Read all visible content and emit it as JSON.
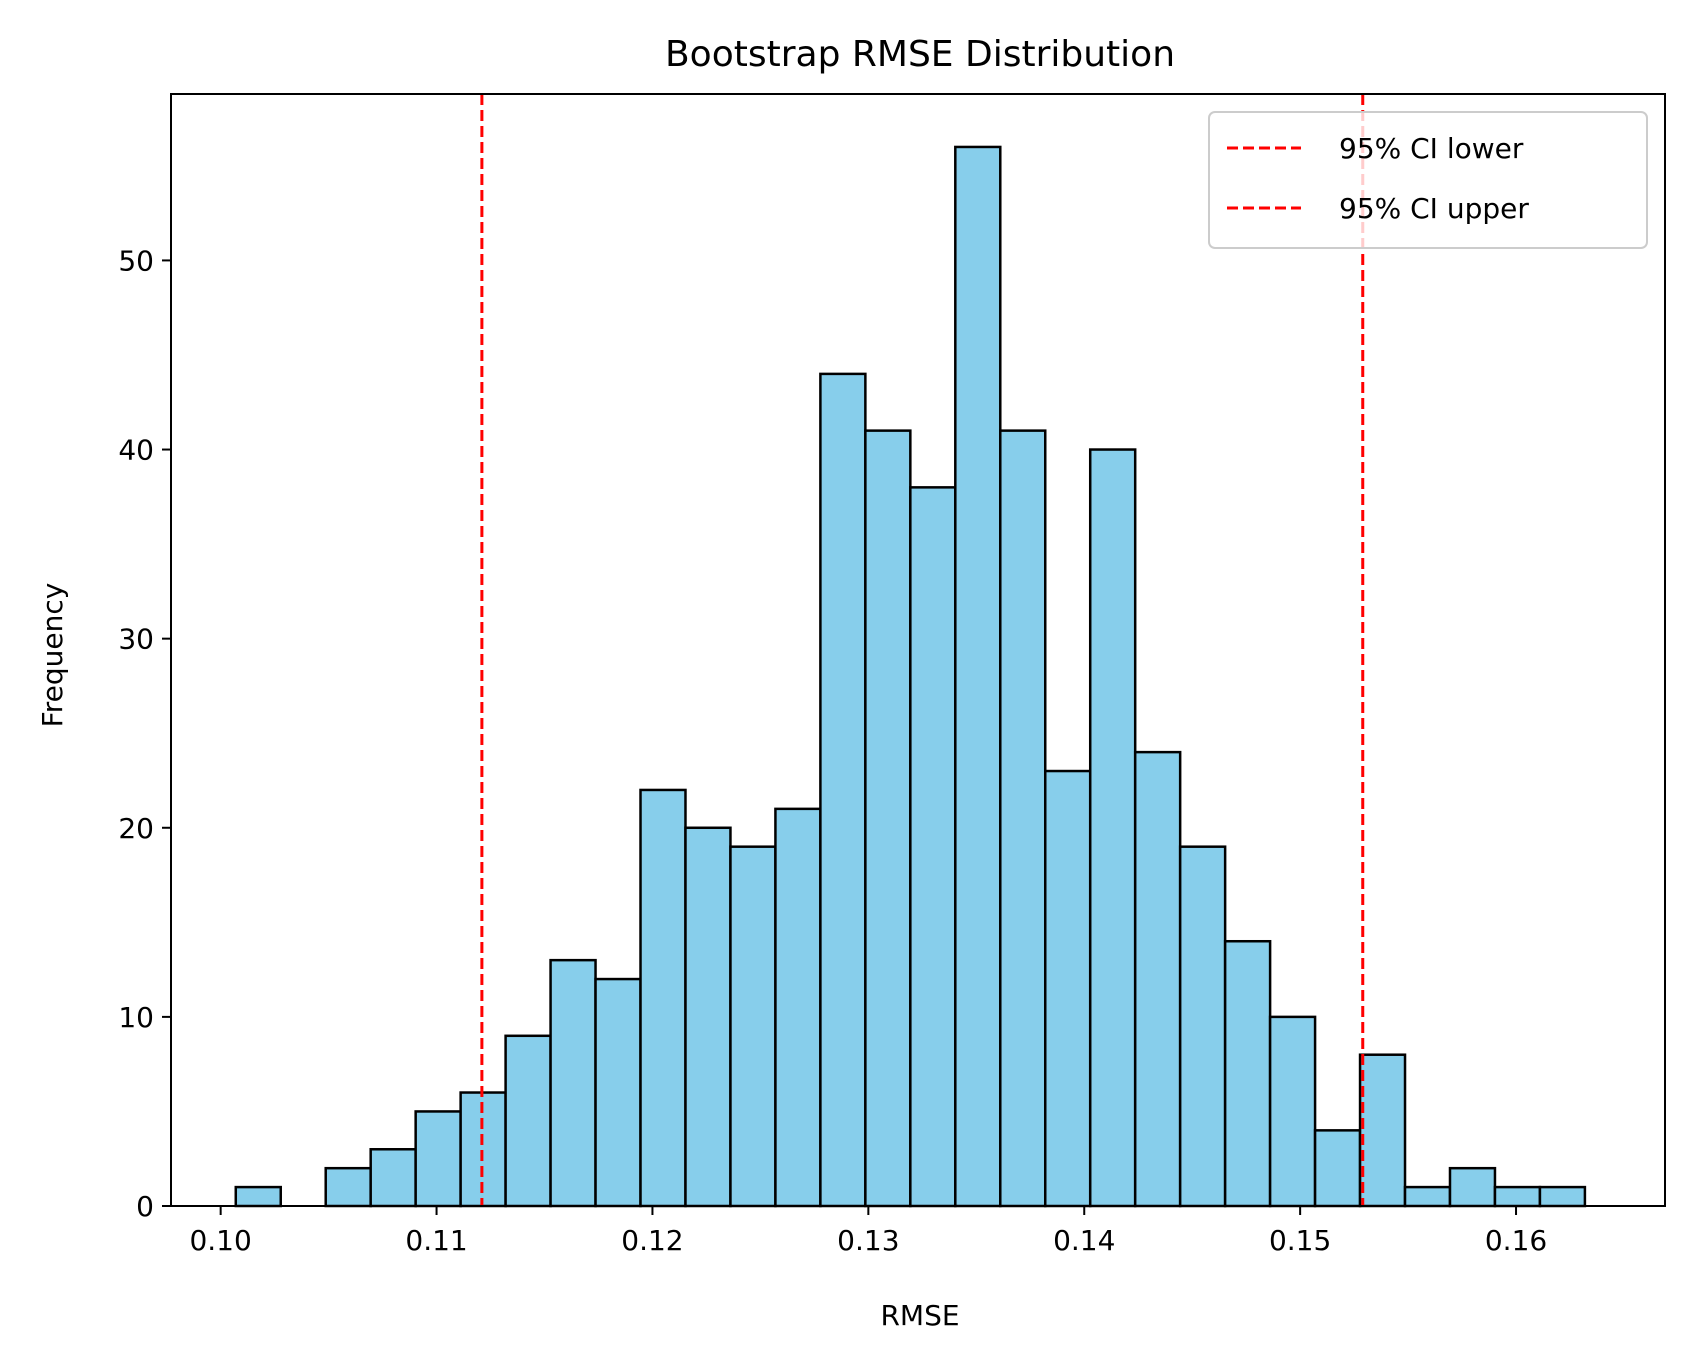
{
  "chart_data": {
    "type": "histogram",
    "title": "Bootstrap RMSE Distribution",
    "xlabel": "RMSE",
    "ylabel": "Frequency",
    "xlim": [
      0.0977,
      0.1669
    ],
    "ylim": [
      0,
      58.8
    ],
    "xticks": [
      0.1,
      0.11,
      0.12,
      0.13,
      0.14,
      0.15,
      0.16
    ],
    "xtick_labels": [
      "0.10",
      "0.11",
      "0.12",
      "0.13",
      "0.14",
      "0.15",
      "0.16"
    ],
    "yticks": [
      0,
      10,
      20,
      30,
      40,
      50
    ],
    "ytick_labels": [
      "0",
      "10",
      "20",
      "30",
      "40",
      "50"
    ],
    "bin_start": 0.1007,
    "bin_width": 0.002083,
    "counts": [
      1,
      0,
      2,
      3,
      5,
      6,
      9,
      13,
      12,
      22,
      20,
      19,
      21,
      44,
      41,
      38,
      56,
      41,
      23,
      40,
      24,
      19,
      14,
      10,
      4,
      8,
      1,
      2,
      1,
      1
    ],
    "bar_color": "#87ceeb",
    "edge_color": "#000000",
    "reference_lines": [
      {
        "name": "95% CI lower",
        "x": 0.1121,
        "color": "#ff0000",
        "style": "dashed"
      },
      {
        "name": "95% CI upper",
        "x": 0.1529,
        "color": "#ff0000",
        "style": "dashed"
      }
    ],
    "legend": {
      "placement": "top-right",
      "entries": [
        "95% CI lower",
        "95% CI upper"
      ]
    },
    "grid": false
  }
}
